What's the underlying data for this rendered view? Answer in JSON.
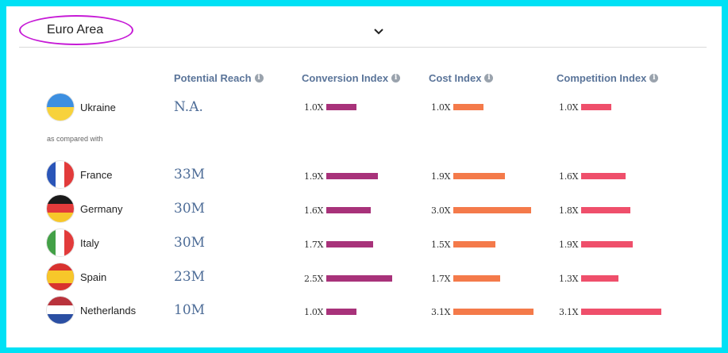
{
  "region": {
    "label": "Euro Area"
  },
  "columns": {
    "reach": "Potential Reach",
    "conversion": "Conversion Index",
    "cost": "Cost Index",
    "competition": "Competition Index"
  },
  "compare_text": "as compared with",
  "colors": {
    "conversion": "#a8327a",
    "cost": "#f47a4a",
    "competition": "#ef4f6b",
    "reach_text": "#4d6c97"
  },
  "max_index": 3.2,
  "base": {
    "name": "Ukraine",
    "reach": "N.A.",
    "conversion": {
      "label": "1.0X",
      "value": 1.0
    },
    "cost": {
      "label": "1.0X",
      "value": 1.0
    },
    "competition": {
      "label": "1.0X",
      "value": 1.0
    }
  },
  "rows": [
    {
      "name": "France",
      "flag": "france-flag-icon",
      "reach": "33M",
      "conversion": {
        "label": "1.9X",
        "value": 1.9
      },
      "cost": {
        "label": "1.9X",
        "value": 1.9
      },
      "competition": {
        "label": "1.6X",
        "value": 1.6
      }
    },
    {
      "name": "Germany",
      "flag": "germany-flag-icon",
      "reach": "30M",
      "conversion": {
        "label": "1.6X",
        "value": 1.6
      },
      "cost": {
        "label": "3.0X",
        "value": 3.0
      },
      "competition": {
        "label": "1.8X",
        "value": 1.8
      }
    },
    {
      "name": "Italy",
      "flag": "italy-flag-icon",
      "reach": "30M",
      "conversion": {
        "label": "1.7X",
        "value": 1.7
      },
      "cost": {
        "label": "1.5X",
        "value": 1.5
      },
      "competition": {
        "label": "1.9X",
        "value": 1.9
      }
    },
    {
      "name": "Spain",
      "flag": "spain-flag-icon",
      "reach": "23M",
      "conversion": {
        "label": "2.5X",
        "value": 2.5
      },
      "cost": {
        "label": "1.7X",
        "value": 1.7
      },
      "competition": {
        "label": "1.3X",
        "value": 1.3
      }
    },
    {
      "name": "Netherlands",
      "flag": "netherlands-flag-icon",
      "reach": "10M",
      "conversion": {
        "label": "1.0X",
        "value": 1.0
      },
      "cost": {
        "label": "3.1X",
        "value": 3.1
      },
      "competition": {
        "label": "3.1X",
        "value": 3.1
      }
    }
  ]
}
